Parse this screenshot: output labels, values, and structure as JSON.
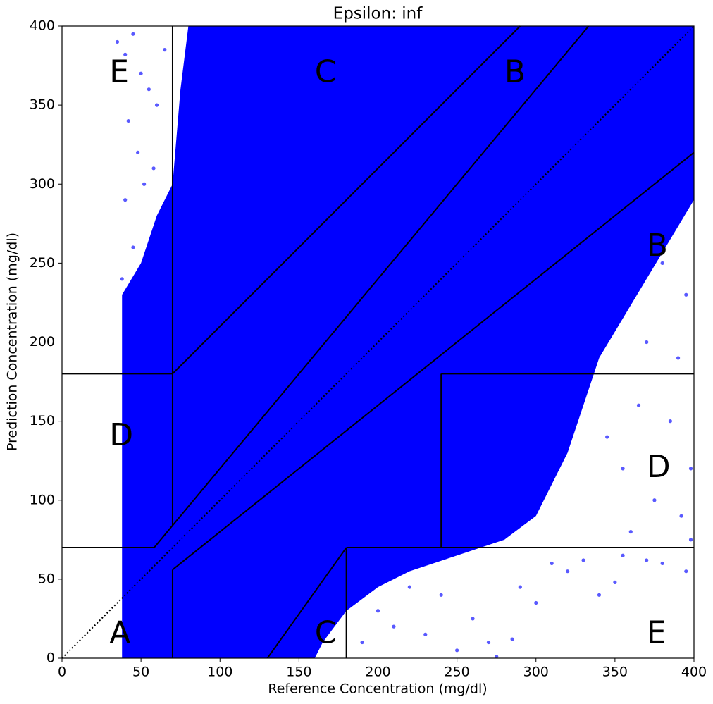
{
  "chart_data": {
    "type": "scatter",
    "title": "Epsilon: inf",
    "x_label": "Reference Concentration (mg/dl)",
    "y_label": "Prediction Concentration (mg/dl)",
    "xlim": [
      0,
      400
    ],
    "ylim": [
      0,
      400
    ],
    "xticks": [
      0,
      50,
      100,
      150,
      200,
      250,
      300,
      350,
      400
    ],
    "yticks": [
      0,
      50,
      100,
      150,
      200,
      250,
      300,
      350,
      400
    ],
    "color": "#0000ff",
    "dense_region": {
      "x": [
        38,
        38,
        50,
        60,
        70,
        75,
        80,
        400,
        400,
        370,
        340,
        320,
        300,
        280,
        250,
        220,
        200,
        180,
        165,
        160
      ],
      "y": [
        0,
        230,
        250,
        280,
        300,
        360,
        400,
        400,
        290,
        240,
        190,
        130,
        90,
        75,
        65,
        55,
        45,
        30,
        10,
        0
      ]
    },
    "x": [
      35,
      40,
      45,
      50,
      55,
      42,
      48,
      60,
      52,
      40,
      65,
      58,
      45,
      38,
      62,
      360,
      380,
      395,
      370,
      390,
      385,
      398,
      375,
      392,
      365,
      355,
      345,
      380,
      395,
      360,
      398,
      200,
      210,
      230,
      250,
      260,
      270,
      285,
      300,
      320,
      340,
      350,
      330,
      290,
      240,
      220,
      190,
      185,
      275,
      310,
      355,
      370
    ],
    "y": [
      390,
      382,
      395,
      370,
      360,
      340,
      320,
      350,
      300,
      290,
      385,
      310,
      260,
      240,
      280,
      270,
      250,
      230,
      200,
      190,
      150,
      120,
      100,
      90,
      160,
      120,
      140,
      60,
      55,
      80,
      75,
      30,
      20,
      15,
      5,
      25,
      10,
      12,
      35,
      55,
      40,
      48,
      62,
      45,
      40,
      45,
      10,
      40,
      1,
      60,
      65,
      62
    ],
    "diagonal": {
      "x": [
        0,
        400
      ],
      "y": [
        0,
        400
      ]
    },
    "zone_lines": [
      {
        "x": [
          0,
          58.33
        ],
        "y": [
          70,
          70
        ]
      },
      {
        "x": [
          58.33,
          333.33
        ],
        "y": [
          70,
          400
        ]
      },
      {
        "x": [
          70,
          70
        ],
        "y": [
          84,
          400
        ]
      },
      {
        "x": [
          0,
          70
        ],
        "y": [
          180,
          180
        ]
      },
      {
        "x": [
          70,
          290
        ],
        "y": [
          180,
          400
        ]
      },
      {
        "x": [
          70,
          70
        ],
        "y": [
          0,
          56
        ]
      },
      {
        "x": [
          70,
          400
        ],
        "y": [
          56,
          320
        ]
      },
      {
        "x": [
          180,
          180
        ],
        "y": [
          0,
          70
        ]
      },
      {
        "x": [
          180,
          400
        ],
        "y": [
          70,
          70
        ]
      },
      {
        "x": [
          240,
          240
        ],
        "y": [
          70,
          180
        ]
      },
      {
        "x": [
          240,
          400
        ],
        "y": [
          180,
          180
        ]
      },
      {
        "x": [
          130,
          180
        ],
        "y": [
          0,
          70
        ]
      }
    ],
    "zone_labels": [
      {
        "text": "A",
        "x": 30,
        "y": 15
      },
      {
        "text": "B",
        "x": 370,
        "y": 260
      },
      {
        "text": "B",
        "x": 280,
        "y": 370
      },
      {
        "text": "C",
        "x": 160,
        "y": 370
      },
      {
        "text": "C",
        "x": 160,
        "y": 15
      },
      {
        "text": "D",
        "x": 30,
        "y": 140
      },
      {
        "text": "D",
        "x": 370,
        "y": 120
      },
      {
        "text": "E",
        "x": 30,
        "y": 370
      },
      {
        "text": "E",
        "x": 370,
        "y": 15
      }
    ]
  }
}
